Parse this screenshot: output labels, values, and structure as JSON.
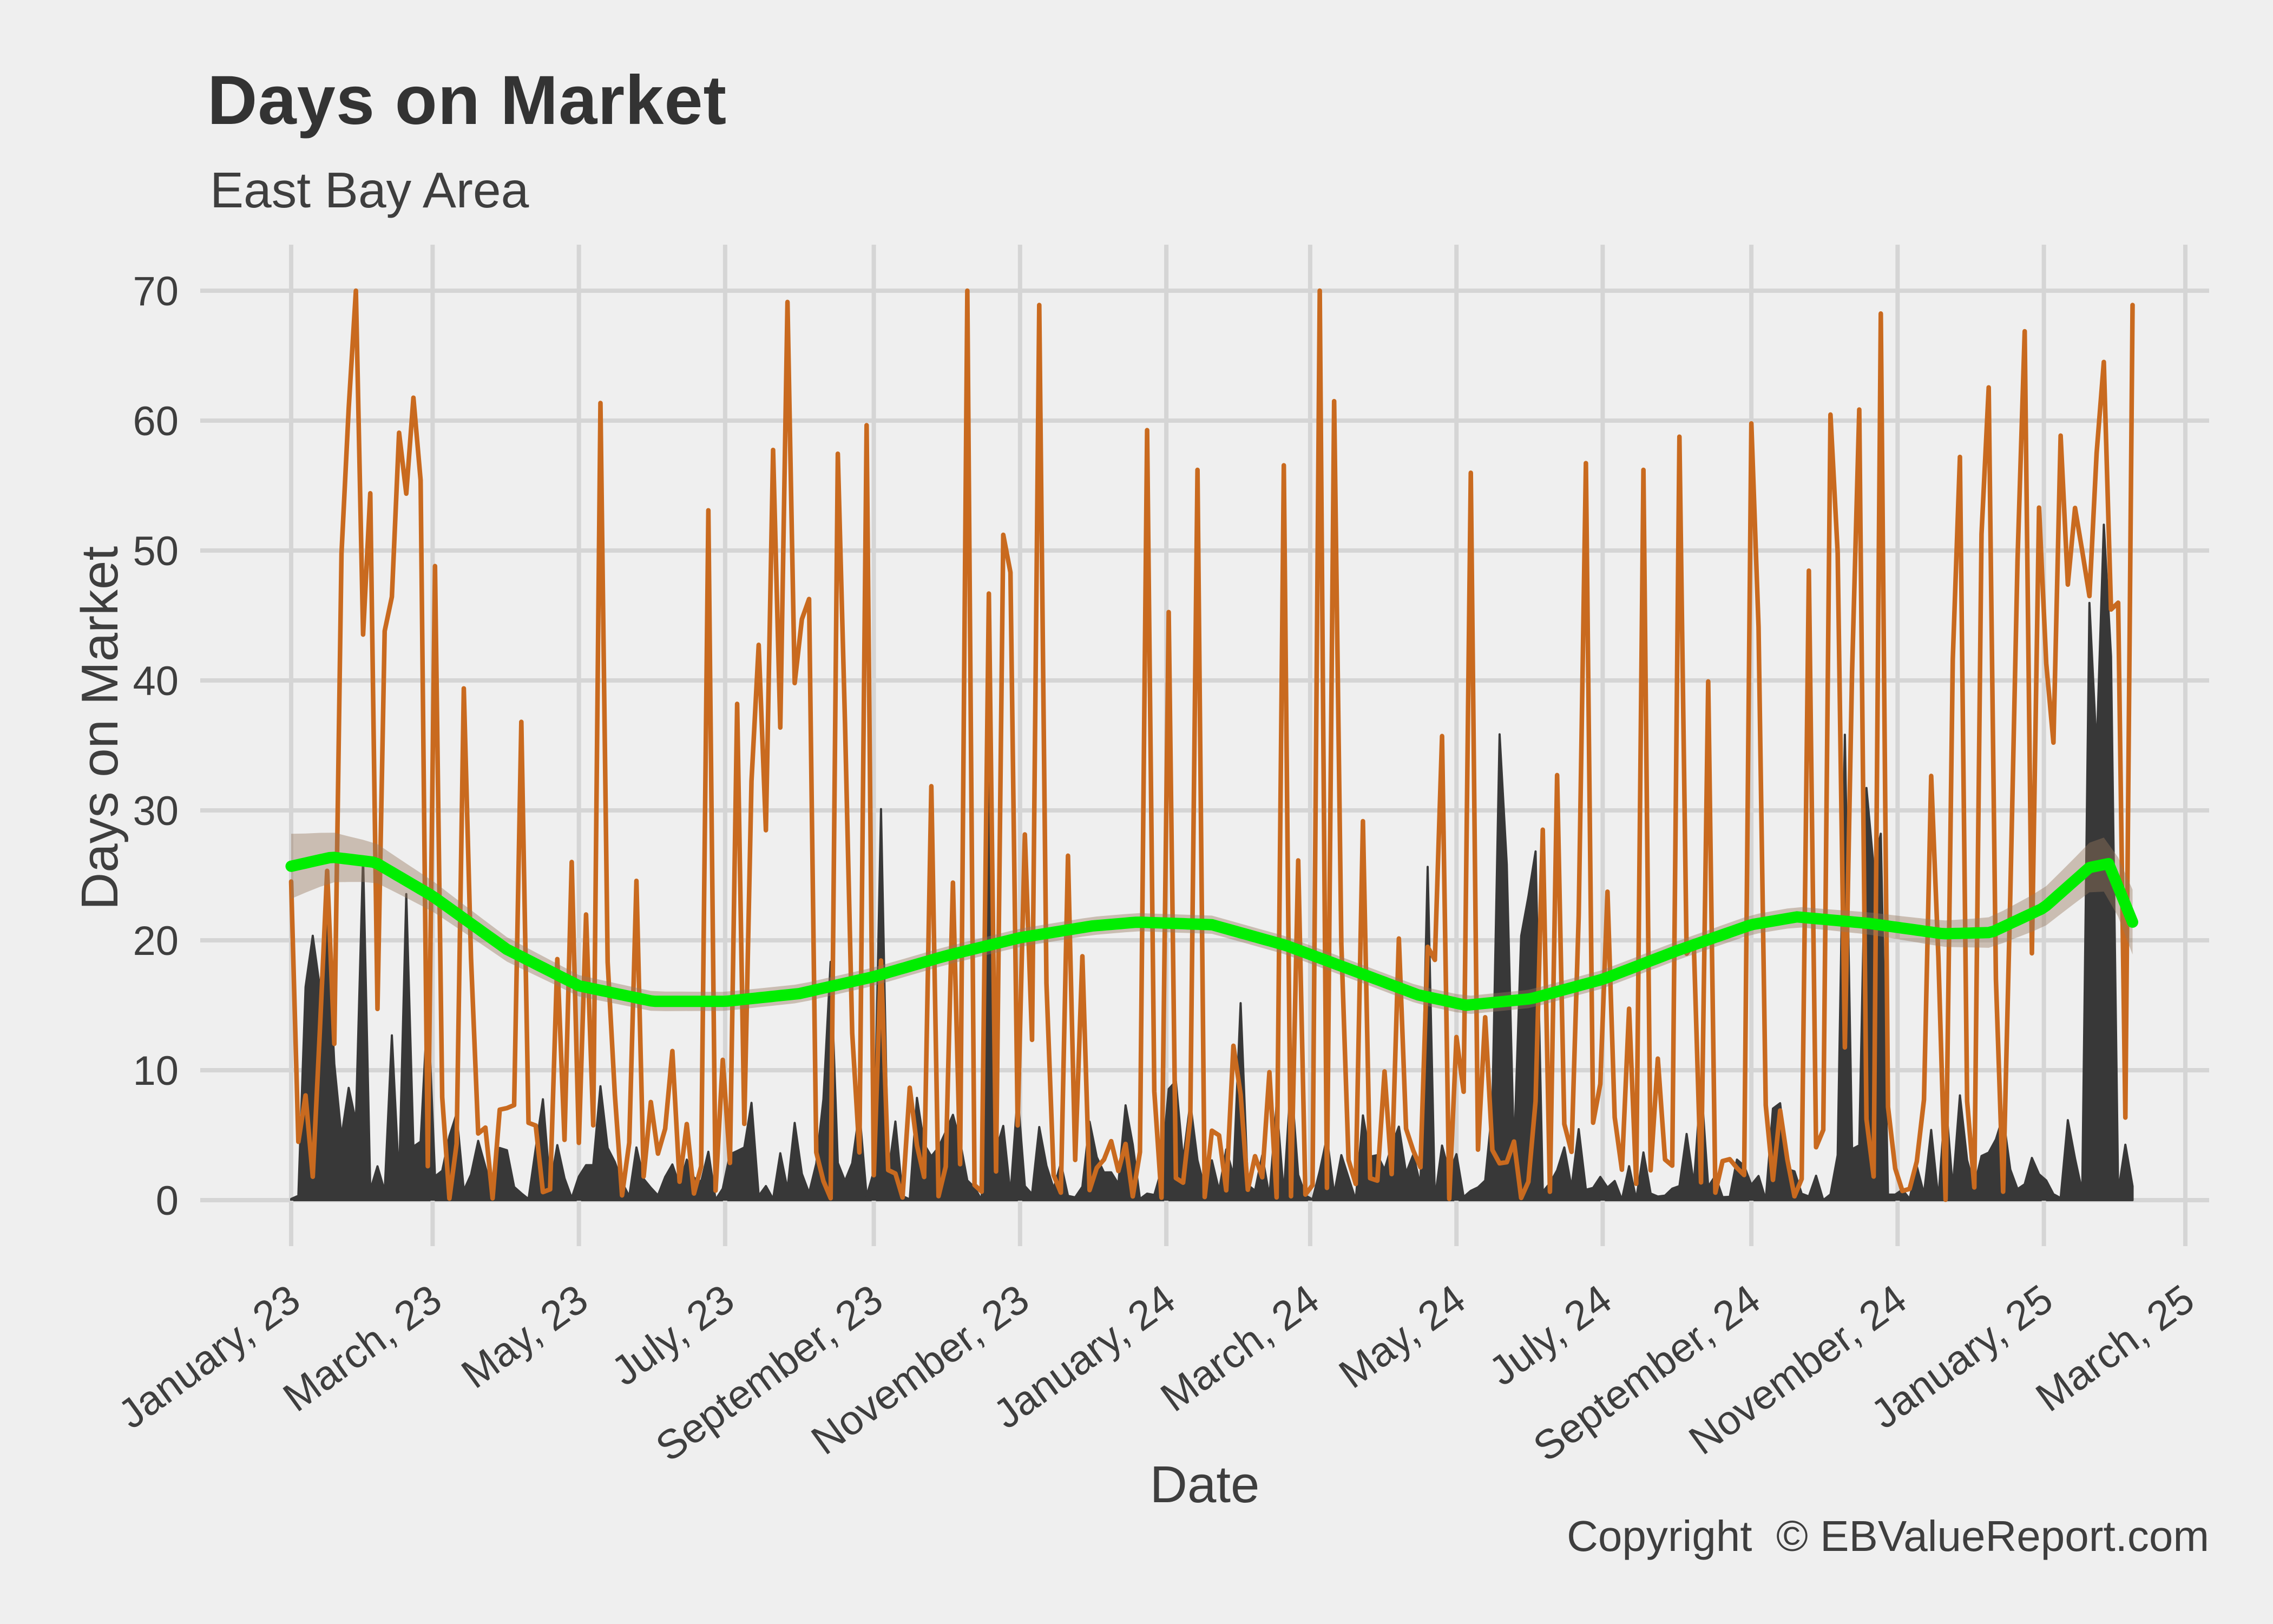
{
  "header": {
    "title": "Days on Market",
    "subtitle": "East Bay Area"
  },
  "axes": {
    "x_title": "Date",
    "y_title": "Days on Market"
  },
  "footer": {
    "copyright": "Copyright  © EBValueReport.com"
  },
  "colors": {
    "background": "#EFEFEF",
    "gridline": "#D5D5D5",
    "daily_line": "#C96A1F",
    "secondary_area": "#383838",
    "trend_line": "#00EE00",
    "trend_band": "rgba(150,120,92,0.42)",
    "text": "#3E3E3E",
    "title_text": "#333333"
  },
  "chart_data": {
    "type": "line",
    "title": "Days on Market",
    "subtitle": "East Bay Area",
    "xlabel": "Date",
    "ylabel": "Days on Market",
    "ylim": [
      0,
      70
    ],
    "grid": true,
    "legend": false,
    "y_ticks": [
      0,
      10,
      20,
      30,
      40,
      50,
      60,
      70
    ],
    "x_domain_days": 790,
    "x_ticks": [
      {
        "label": "January, 23",
        "day": 0
      },
      {
        "label": "March, 23",
        "day": 59
      },
      {
        "label": "May, 23",
        "day": 120
      },
      {
        "label": "July, 23",
        "day": 181
      },
      {
        "label": "September, 23",
        "day": 243
      },
      {
        "label": "November, 23",
        "day": 304
      },
      {
        "label": "January, 24",
        "day": 365
      },
      {
        "label": "March, 24",
        "day": 425
      },
      {
        "label": "May, 24",
        "day": 486
      },
      {
        "label": "July, 24",
        "day": 547
      },
      {
        "label": "September, 24",
        "day": 609
      },
      {
        "label": "November, 24",
        "day": 670
      },
      {
        "label": "January, 25",
        "day": 731
      },
      {
        "label": "March, 25",
        "day": 790
      }
    ],
    "series": [
      {
        "name": "daily-days-on-market",
        "style": "spike-line",
        "color": "#C96A1F",
        "value_range": [
          0,
          70
        ]
      },
      {
        "name": "secondary-days-on-market",
        "style": "spike-area",
        "color": "#383838",
        "value_range": [
          0,
          55
        ]
      },
      {
        "name": "smoothed-trend",
        "style": "smooth-line",
        "color": "#00EE00",
        "band_color": "rgba(150,120,92,0.42)",
        "points": [
          [
            0,
            25.7
          ],
          [
            17,
            26.4
          ],
          [
            35,
            26.0
          ],
          [
            59,
            23.4
          ],
          [
            90,
            19.3
          ],
          [
            120,
            16.5
          ],
          [
            151,
            15.3
          ],
          [
            181,
            15.3
          ],
          [
            212,
            15.9
          ],
          [
            243,
            17.2
          ],
          [
            273,
            18.8
          ],
          [
            304,
            20.2
          ],
          [
            334,
            21.1
          ],
          [
            353,
            21.4
          ],
          [
            384,
            21.2
          ],
          [
            415,
            19.6
          ],
          [
            444,
            17.6
          ],
          [
            470,
            15.8
          ],
          [
            490,
            15.0
          ],
          [
            517,
            15.5
          ],
          [
            547,
            17.0
          ],
          [
            578,
            19.2
          ],
          [
            609,
            21.2
          ],
          [
            628,
            21.8
          ],
          [
            658,
            21.3
          ],
          [
            689,
            20.5
          ],
          [
            709,
            20.6
          ],
          [
            731,
            22.5
          ],
          [
            750,
            25.6
          ],
          [
            758,
            25.9
          ],
          [
            768,
            21.4
          ]
        ]
      }
    ],
    "noise_params": {
      "note": "dense per-listing spikes estimated from pixels; regenerated deterministically",
      "seed": 1337,
      "span_days": 768,
      "step_days": 3,
      "spike_probability": 0.33,
      "spike_min": 18,
      "spike_max": 70,
      "base_max": 16,
      "orange_clusters": [
        {
          "from": 24,
          "to": 62,
          "p": 0.62,
          "min": 28,
          "max": 66
        },
        {
          "from": 600,
          "to": 660,
          "p": 0.5,
          "min": 22,
          "max": 62
        },
        {
          "from": 728,
          "to": 768,
          "p": 0.58,
          "min": 28,
          "max": 70
        }
      ],
      "dark_base_max": 11,
      "dark_spike_probability": 0.04,
      "dark_clusters": [
        {
          "from": 0,
          "to": 62,
          "p": 0.38,
          "min": 12,
          "max": 30
        },
        {
          "from": 500,
          "to": 516,
          "p": 0.4,
          "min": 20,
          "max": 36
        },
        {
          "from": 640,
          "to": 668,
          "p": 0.3,
          "min": 18,
          "max": 36
        },
        {
          "from": 748,
          "to": 764,
          "p": 0.55,
          "min": 30,
          "max": 52
        }
      ]
    }
  }
}
